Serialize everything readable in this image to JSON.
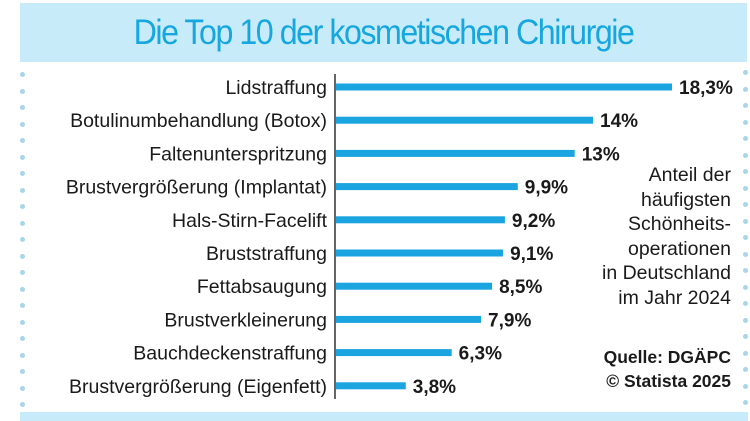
{
  "title": "Die Top 10 der kosmetischen Chirurgie",
  "annotation": {
    "lines": [
      "Anteil der",
      "häufigsten",
      "Schönheits-",
      "operationen",
      "in Deutschland",
      "im Jahr 2024"
    ]
  },
  "source": {
    "line1": "Quelle: DGÄPC",
    "line2": "© Statista 2025"
  },
  "colors": {
    "bar": "#1aa4e0",
    "title": "#16a7e0",
    "band": "#c8ebf9",
    "axis": "#333333"
  },
  "chart_data": {
    "type": "bar",
    "orientation": "horizontal",
    "title": "Die Top 10 der kosmetischen Chirurgie",
    "subtitle": "Anteil der häufigsten Schönheitsoperationen in Deutschland im Jahr 2024",
    "xlabel": "",
    "ylabel": "",
    "unit": "%",
    "xlim": [
      0,
      18.3
    ],
    "grid": false,
    "legend": "none",
    "categories": [
      "Lidstraffung",
      "Botulinumbehandlung (Botox)",
      "Faltenunterspritzung",
      "Brustvergrößerung (Implantat)",
      "Hals-Stirn-Facelift",
      "Bruststraffung",
      "Fettabsaugung",
      "Brustverkleinerung",
      "Bauchdeckenstraffung",
      "Brustvergrößerung (Eigenfett)"
    ],
    "values": [
      18.3,
      14,
      13,
      9.9,
      9.2,
      9.1,
      8.5,
      7.9,
      6.3,
      3.8
    ],
    "value_labels": [
      "18,3%",
      "14%",
      "13%",
      "9,9%",
      "9,2%",
      "9,1%",
      "8,5%",
      "7,9%",
      "6,3%",
      "3,8%"
    ],
    "source": "Quelle: DGÄPC",
    "copyright": "© Statista 2025"
  }
}
